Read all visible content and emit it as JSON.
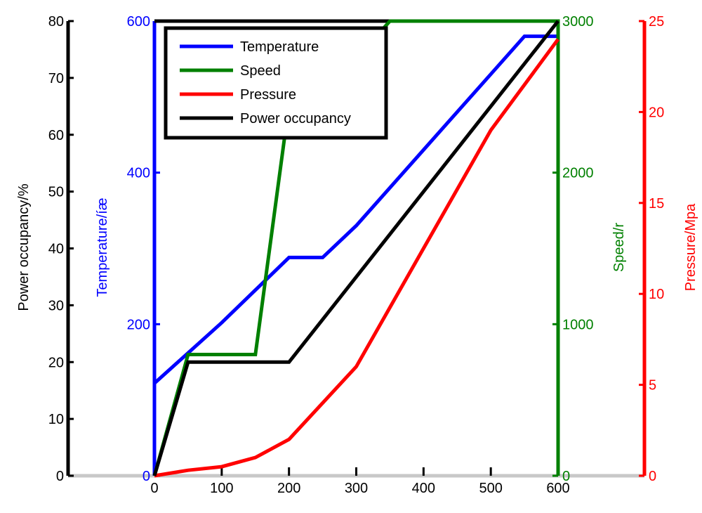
{
  "chart_data": {
    "type": "line",
    "title": "",
    "xlabel": "",
    "x": [
      0,
      50,
      100,
      150,
      200,
      250,
      300,
      350,
      400,
      450,
      500,
      550,
      600
    ],
    "xlim": [
      0,
      600
    ],
    "x_ticks": [
      "0",
      "100",
      "200",
      "300",
      "400",
      "500",
      "600"
    ],
    "grid": false,
    "legend_position": "top-left",
    "axes": {
      "power": {
        "label": "Power occupancy/%",
        "range": [
          0,
          80
        ],
        "ticks": [
          "0",
          "10",
          "20",
          "30",
          "40",
          "50",
          "60",
          "70",
          "80"
        ],
        "color": "#000000",
        "side": "left-outer"
      },
      "temperature": {
        "label": "Temperature/íæ",
        "range": [
          0,
          600
        ],
        "ticks": [
          "0",
          "200",
          "400",
          "600"
        ],
        "color": "#0000ff",
        "side": "left-inner"
      },
      "speed": {
        "label": "Speed/r",
        "range": [
          0,
          3000
        ],
        "ticks": [
          "0",
          "1000",
          "2000",
          "3000"
        ],
        "color": "#008000",
        "side": "right-inner"
      },
      "pressure": {
        "label": "Pressure/Mpa",
        "range": [
          0,
          25
        ],
        "ticks": [
          "0",
          "5",
          "10",
          "15",
          "20",
          "25"
        ],
        "color": "#ff0000",
        "side": "right-outer"
      }
    },
    "series": [
      {
        "name": "Temperature",
        "axis": "temperature",
        "color": "#0000ff",
        "points": [
          [
            0,
            122
          ],
          [
            100,
            202
          ],
          [
            200,
            288
          ],
          [
            250,
            288
          ],
          [
            300,
            330
          ],
          [
            400,
            430
          ],
          [
            500,
            530
          ],
          [
            550,
            580
          ],
          [
            600,
            580
          ]
        ]
      },
      {
        "name": "Speed",
        "axis": "speed",
        "color": "#008000",
        "points": [
          [
            0,
            0
          ],
          [
            50,
            800
          ],
          [
            150,
            800
          ],
          [
            200,
            2450
          ],
          [
            250,
            2750
          ],
          [
            300,
            2750
          ],
          [
            350,
            3000
          ],
          [
            600,
            3000
          ],
          [
            600,
            0
          ]
        ]
      },
      {
        "name": "Pressure",
        "axis": "pressure",
        "color": "#ff0000",
        "points": [
          [
            0,
            0
          ],
          [
            50,
            0.3
          ],
          [
            100,
            0.5
          ],
          [
            150,
            1.0
          ],
          [
            200,
            2.0
          ],
          [
            300,
            6.0
          ],
          [
            400,
            12.5
          ],
          [
            500,
            19.0
          ],
          [
            600,
            24.0
          ]
        ]
      },
      {
        "name": "Power occupancy",
        "axis": "power",
        "color": "#000000",
        "points": [
          [
            0,
            0
          ],
          [
            50,
            20
          ],
          [
            200,
            20
          ],
          [
            600,
            80
          ]
        ]
      }
    ]
  }
}
